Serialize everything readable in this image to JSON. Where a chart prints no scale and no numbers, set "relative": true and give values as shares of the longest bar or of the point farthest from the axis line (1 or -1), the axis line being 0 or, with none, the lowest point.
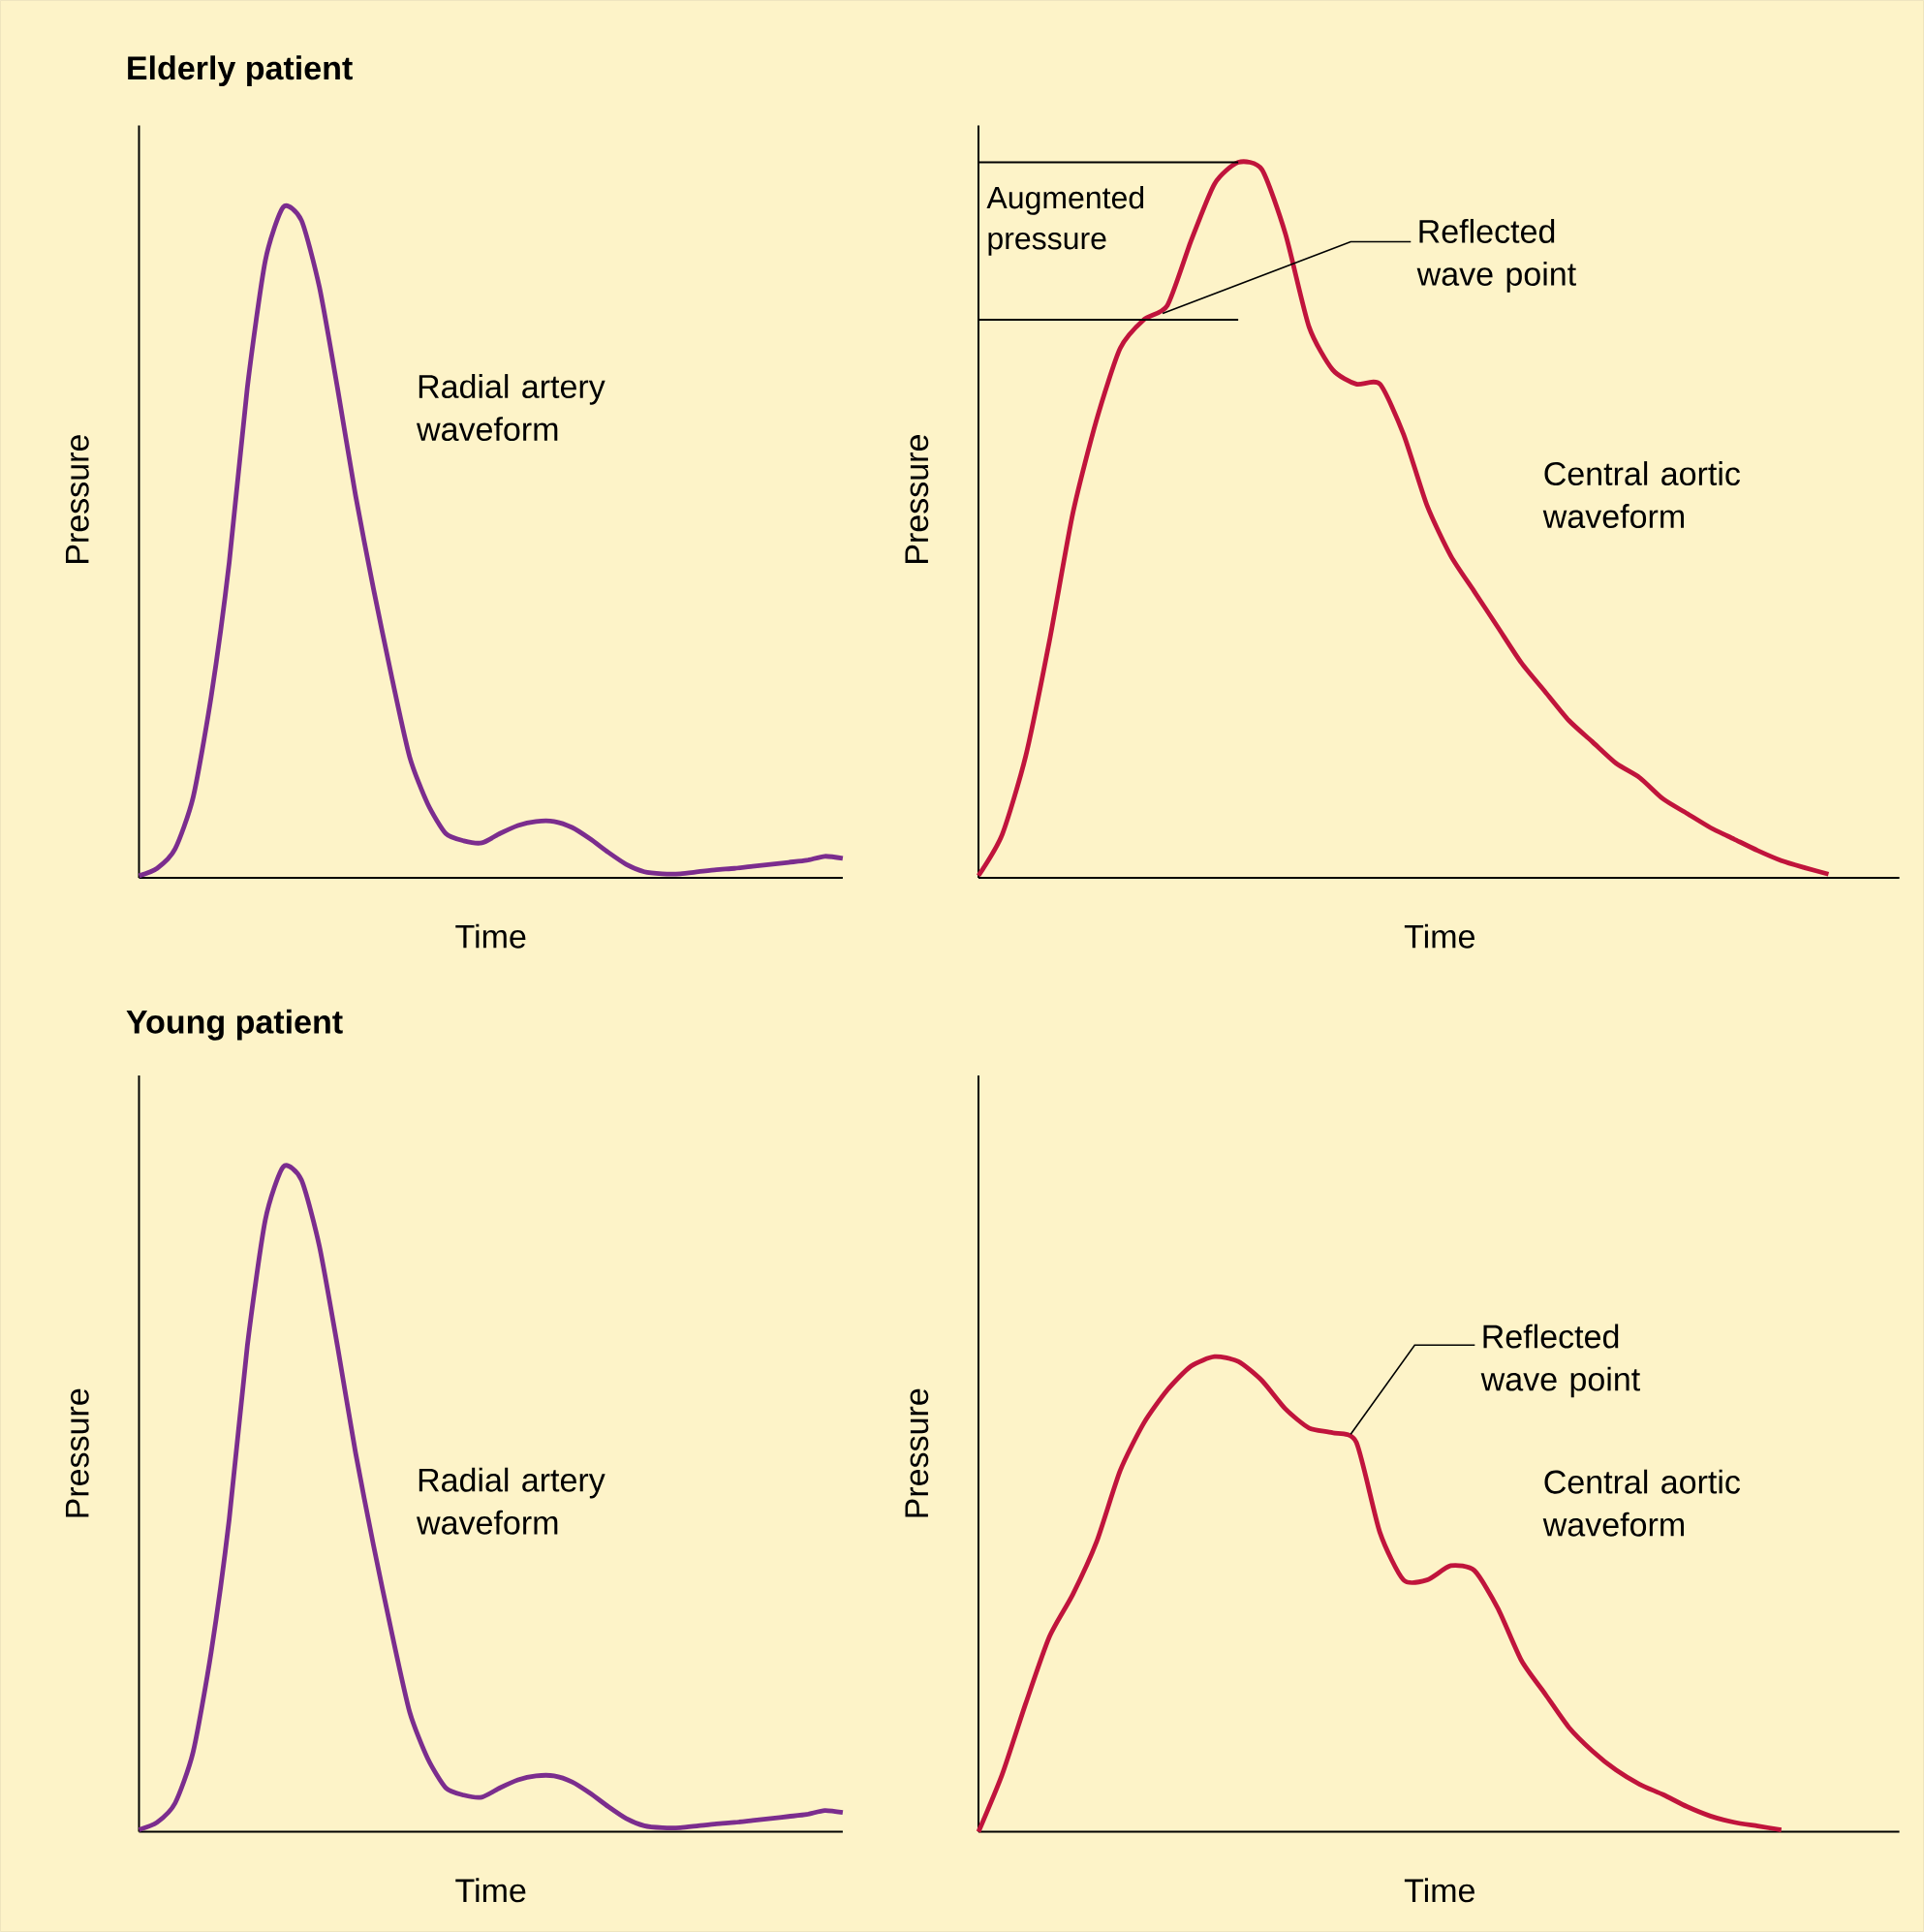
{
  "chart_data": [
    {
      "type": "line",
      "title": "Elderly patient",
      "xlabel": "Time",
      "ylabel": "Pressure",
      "relative": true,
      "color": "#7b2d8e",
      "categories": [
        null,
        null,
        null,
        null,
        null,
        null,
        null,
        null,
        null,
        null,
        null,
        null,
        null,
        null,
        null,
        null,
        null,
        null,
        null,
        null,
        null,
        null,
        null,
        null,
        null,
        null,
        null,
        null,
        null,
        null,
        null,
        null,
        null,
        null,
        null,
        null,
        null,
        null,
        null,
        null
      ],
      "values": [
        0.003,
        0.014,
        0.043,
        0.12,
        0.27,
        0.47,
        0.73,
        0.92,
        1.0,
        0.98,
        0.88,
        0.73,
        0.57,
        0.43,
        0.3,
        0.18,
        0.11,
        0.066,
        0.055,
        0.052,
        0.066,
        0.078,
        0.084,
        0.084,
        0.075,
        0.058,
        0.038,
        0.02,
        0.009,
        0.006,
        0.006,
        0.009,
        0.012,
        0.014,
        0.017,
        0.02,
        0.023,
        0.026,
        0.032,
        0.029
      ],
      "annotations": [
        "Radial artery waveform"
      ]
    },
    {
      "type": "line",
      "xlabel": "Time",
      "ylabel": "Pressure",
      "relative": true,
      "color": "#c0143c",
      "categories": [
        null,
        null,
        null,
        null,
        null,
        null,
        null,
        null,
        null,
        null,
        null,
        null,
        null,
        null,
        null,
        null,
        null,
        null,
        null,
        null,
        null,
        null,
        null,
        null,
        null,
        null,
        null,
        null,
        null,
        null,
        null,
        null,
        null,
        null,
        null,
        null,
        null,
        null,
        null,
        null
      ],
      "values": [
        0.003,
        0.06,
        0.17,
        0.33,
        0.51,
        0.64,
        0.74,
        0.78,
        0.8,
        0.89,
        0.97,
        1.0,
        0.99,
        0.9,
        0.77,
        0.71,
        0.69,
        0.69,
        0.62,
        0.52,
        0.45,
        0.4,
        0.35,
        0.3,
        0.26,
        0.22,
        0.19,
        0.16,
        0.14,
        0.11,
        0.09,
        0.07,
        0.054,
        0.038,
        0.024,
        0.014,
        0.005,
        null,
        null,
        null
      ],
      "ref_lines": [
        {
          "axis": "y",
          "value": 0.78
        },
        {
          "axis": "y",
          "value": 1.0,
          "label": "Augmented pressure"
        }
      ],
      "annotations": [
        "Reflected wave point",
        "Central aortic waveform"
      ]
    },
    {
      "type": "line",
      "title": "Young patient",
      "xlabel": "Time",
      "ylabel": "Pressure",
      "relative": true,
      "color": "#7b2d8e",
      "categories": [
        null,
        null,
        null,
        null,
        null,
        null,
        null,
        null,
        null,
        null,
        null,
        null,
        null,
        null,
        null,
        null,
        null,
        null,
        null,
        null,
        null,
        null,
        null,
        null,
        null,
        null,
        null,
        null,
        null,
        null,
        null,
        null,
        null,
        null,
        null,
        null,
        null,
        null,
        null,
        null
      ],
      "values": [
        0.003,
        0.014,
        0.043,
        0.12,
        0.27,
        0.47,
        0.73,
        0.92,
        1.0,
        0.98,
        0.88,
        0.73,
        0.57,
        0.43,
        0.3,
        0.18,
        0.11,
        0.066,
        0.055,
        0.052,
        0.066,
        0.078,
        0.084,
        0.084,
        0.075,
        0.058,
        0.038,
        0.02,
        0.009,
        0.006,
        0.006,
        0.009,
        0.012,
        0.014,
        0.017,
        0.02,
        0.023,
        0.026,
        0.032,
        0.029
      ],
      "annotations": [
        "Radial artery waveform"
      ]
    },
    {
      "type": "line",
      "xlabel": "Time",
      "ylabel": "Pressure",
      "relative": true,
      "color": "#c0143c",
      "categories": [
        null,
        null,
        null,
        null,
        null,
        null,
        null,
        null,
        null,
        null,
        null,
        null,
        null,
        null,
        null,
        null,
        null,
        null,
        null,
        null,
        null,
        null,
        null,
        null,
        null,
        null,
        null,
        null,
        null,
        null,
        null,
        null,
        null,
        null,
        null,
        null,
        null,
        null,
        null,
        null
      ],
      "values": [
        0.0,
        0.12,
        0.27,
        0.41,
        0.5,
        0.61,
        0.76,
        0.86,
        0.93,
        0.98,
        1.0,
        0.99,
        0.95,
        0.89,
        0.85,
        0.84,
        0.82,
        0.63,
        0.53,
        0.53,
        0.56,
        0.55,
        0.47,
        0.36,
        0.29,
        0.22,
        0.17,
        0.13,
        0.1,
        0.078,
        0.053,
        0.033,
        0.02,
        0.012,
        0.004,
        null,
        null,
        null,
        null,
        null
      ],
      "annotations": [
        "Reflected wave point",
        "Central aortic waveform"
      ]
    }
  ]
}
